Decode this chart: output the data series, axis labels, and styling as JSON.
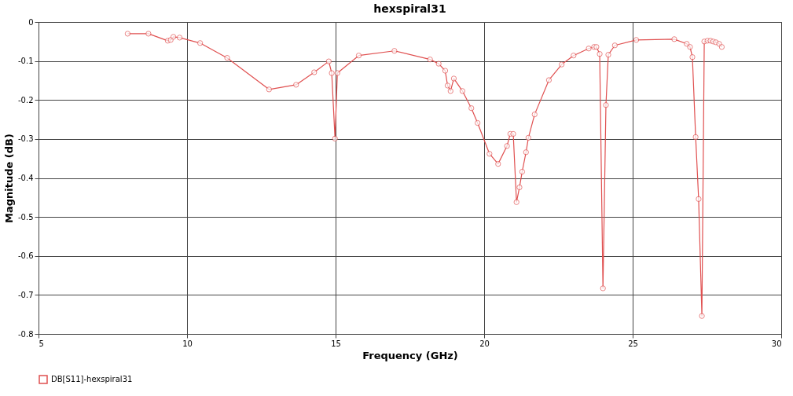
{
  "chart_data": {
    "type": "line",
    "title": "hexspiral31",
    "xlabel": "Frequency (GHz)",
    "ylabel": "Magnitude (dB)",
    "x": [
      8.0,
      8.7,
      9.35,
      9.45,
      9.54,
      9.75,
      10.44,
      11.35,
      12.76,
      13.67,
      14.28,
      14.77,
      14.87,
      14.98,
      15.06,
      15.78,
      16.98,
      18.18,
      18.47,
      18.69,
      18.77,
      18.87,
      18.98,
      19.27,
      19.57,
      19.78,
      20.18,
      20.47,
      20.77,
      20.88,
      20.98,
      21.09,
      21.19,
      21.28,
      21.41,
      21.49,
      21.7,
      22.18,
      22.61,
      23.01,
      23.52,
      23.7,
      23.78,
      23.89,
      24.0,
      24.1,
      24.18,
      24.4,
      25.12,
      26.4,
      26.82,
      26.93,
      27.01,
      27.12,
      27.22,
      27.33,
      27.41,
      27.52,
      27.62,
      27.71,
      27.8,
      27.91,
      28.0
    ],
    "series": [
      {
        "name": "DB[S11]-hexspiral31",
        "color": "#e05050",
        "values": [
          -0.03,
          -0.03,
          -0.048,
          -0.046,
          -0.038,
          -0.04,
          -0.054,
          -0.092,
          -0.173,
          -0.161,
          -0.129,
          -0.101,
          -0.131,
          -0.299,
          -0.131,
          -0.086,
          -0.074,
          -0.096,
          -0.107,
          -0.125,
          -0.163,
          -0.177,
          -0.145,
          -0.177,
          -0.221,
          -0.259,
          -0.338,
          -0.364,
          -0.318,
          -0.287,
          -0.287,
          -0.462,
          -0.424,
          -0.384,
          -0.334,
          -0.297,
          -0.237,
          -0.149,
          -0.109,
          -0.086,
          -0.068,
          -0.064,
          -0.064,
          -0.082,
          -0.683,
          -0.213,
          -0.084,
          -0.06,
          -0.046,
          -0.044,
          -0.056,
          -0.064,
          -0.09,
          -0.295,
          -0.454,
          -0.754,
          -0.05,
          -0.048,
          -0.048,
          -0.05,
          -0.052,
          -0.056,
          -0.064
        ]
      }
    ],
    "xlim": [
      5,
      30
    ],
    "xticks": [
      5,
      10,
      15,
      20,
      25,
      30
    ],
    "ylim": [
      -0.8,
      0
    ],
    "yticks": [
      -0.8,
      -0.7,
      -0.6,
      -0.5,
      -0.4,
      -0.3,
      -0.2,
      -0.1,
      0
    ],
    "grid": true,
    "legend": "bottom",
    "marker": "circle",
    "line_style": "solid"
  }
}
